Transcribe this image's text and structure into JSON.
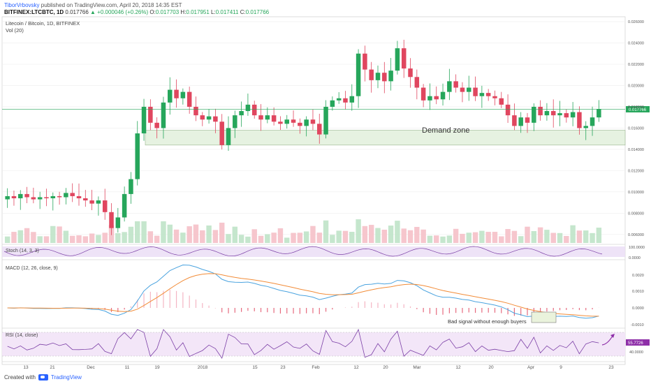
{
  "header": {
    "author": "TiborVrbovsky",
    "published": "published on TradingView.com, April 20, 2018 14:35 EST",
    "symbol": "BITFINEX:LTCBTC, 1D",
    "last": "0.017766",
    "change": "▲ +0.000046 (+0.26%)",
    "o_label": "O:",
    "o_value": "0.017703",
    "h_label": "H:",
    "h_value": "0.017951",
    "l_label": "L:",
    "l_value": "0.017411",
    "c_label": "C:",
    "c_value": "0.017766"
  },
  "footer": {
    "created": "Created with",
    "brand": "TradingView"
  },
  "colors": {
    "up": "#26a65b",
    "down": "#e0465f",
    "accent": "#2962ff",
    "zone": "#e6f2e1",
    "macd": "#4aa3df",
    "signal": "#f28c38",
    "rsi": "#7b3fa6",
    "stoch": "#7b3fa6"
  },
  "chart_data": {
    "type": "candlestick",
    "title": "Litecoin / Bitcoin, 1D, BITFINEX",
    "volume_label": "Vol (20)",
    "last_price_label": "0.017766",
    "zone_label": "Demand zone",
    "annotation": "Bad signal without enough buyers",
    "price_ticks": [
      "0.026000",
      "0.024000",
      "0.022000",
      "0.020000",
      "0.018000",
      "0.016000",
      "0.014000",
      "0.012000",
      "0.010000",
      "0.008000",
      "0.006000"
    ],
    "price_range": [
      0.0052,
      0.0262
    ],
    "demand_zone": [
      0.0144,
      0.0158
    ],
    "x_labels": [
      "13",
      "21",
      "Dec",
      "11",
      "19",
      "2018",
      "15",
      "23",
      "Feb",
      "12",
      "20",
      "Mar",
      "12",
      "20",
      "Apr",
      "9",
      "23"
    ],
    "last_price": 0.017766,
    "candles_key": [
      {
        "o": 0.0093,
        "c": 0.0096
      },
      {
        "o": 0.0096,
        "c": 0.0094
      },
      {
        "o": 0.0094,
        "c": 0.0098
      },
      {
        "o": 0.0098,
        "c": 0.0095
      },
      {
        "o": 0.0095,
        "c": 0.0093
      },
      {
        "o": 0.0093,
        "c": 0.0095
      },
      {
        "o": 0.0095,
        "c": 0.0094
      },
      {
        "o": 0.0094,
        "c": 0.0096
      },
      {
        "o": 0.0096,
        "c": 0.0095
      },
      {
        "o": 0.0095,
        "c": 0.0099
      },
      {
        "o": 0.0099,
        "c": 0.0096
      },
      {
        "o": 0.0096,
        "c": 0.0094
      },
      {
        "o": 0.0094,
        "c": 0.0092
      },
      {
        "o": 0.0092,
        "c": 0.0089
      },
      {
        "o": 0.0089,
        "c": 0.0092
      },
      {
        "o": 0.0092,
        "c": 0.0081
      },
      {
        "o": 0.0081,
        "c": 0.0066
      },
      {
        "o": 0.0066,
        "c": 0.0076
      },
      {
        "o": 0.0076,
        "c": 0.0098
      },
      {
        "o": 0.0098,
        "c": 0.0112
      },
      {
        "o": 0.0112,
        "c": 0.0155
      },
      {
        "o": 0.0155,
        "c": 0.018
      },
      {
        "o": 0.018,
        "c": 0.0165
      },
      {
        "o": 0.0165,
        "c": 0.016
      },
      {
        "o": 0.016,
        "c": 0.0184
      },
      {
        "o": 0.0184,
        "c": 0.0196
      },
      {
        "o": 0.0196,
        "c": 0.0188
      },
      {
        "o": 0.0188,
        "c": 0.0194
      },
      {
        "o": 0.0194,
        "c": 0.018
      },
      {
        "o": 0.018,
        "c": 0.0172
      },
      {
        "o": 0.0172,
        "c": 0.0168
      },
      {
        "o": 0.0168,
        "c": 0.0171
      },
      {
        "o": 0.0171,
        "c": 0.0166
      },
      {
        "o": 0.0166,
        "c": 0.0144
      },
      {
        "o": 0.0144,
        "c": 0.016
      },
      {
        "o": 0.016,
        "c": 0.0172
      },
      {
        "o": 0.0172,
        "c": 0.0176
      },
      {
        "o": 0.0176,
        "c": 0.0182
      },
      {
        "o": 0.0182,
        "c": 0.0172
      },
      {
        "o": 0.0172,
        "c": 0.0168
      },
      {
        "o": 0.0168,
        "c": 0.0172
      },
      {
        "o": 0.0172,
        "c": 0.0166
      },
      {
        "o": 0.0166,
        "c": 0.0164
      },
      {
        "o": 0.0164,
        "c": 0.0168
      },
      {
        "o": 0.0168,
        "c": 0.0165
      },
      {
        "o": 0.0165,
        "c": 0.0162
      },
      {
        "o": 0.0162,
        "c": 0.0168
      },
      {
        "o": 0.0168,
        "c": 0.0164
      },
      {
        "o": 0.0164,
        "c": 0.0154
      },
      {
        "o": 0.0154,
        "c": 0.018
      },
      {
        "o": 0.018,
        "c": 0.0186
      },
      {
        "o": 0.0186,
        "c": 0.0188
      },
      {
        "o": 0.0188,
        "c": 0.0184
      },
      {
        "o": 0.0184,
        "c": 0.019
      },
      {
        "o": 0.019,
        "c": 0.023
      },
      {
        "o": 0.023,
        "c": 0.0215
      },
      {
        "o": 0.0215,
        "c": 0.0205
      },
      {
        "o": 0.0205,
        "c": 0.0212
      },
      {
        "o": 0.0212,
        "c": 0.0204
      },
      {
        "o": 0.0204,
        "c": 0.0214
      },
      {
        "o": 0.0214,
        "c": 0.0235
      },
      {
        "o": 0.0235,
        "c": 0.0216
      },
      {
        "o": 0.0216,
        "c": 0.0208
      },
      {
        "o": 0.0208,
        "c": 0.0198
      },
      {
        "o": 0.0198,
        "c": 0.0186
      },
      {
        "o": 0.0186,
        "c": 0.019
      },
      {
        "o": 0.019,
        "c": 0.0187
      },
      {
        "o": 0.0187,
        "c": 0.0194
      },
      {
        "o": 0.0194,
        "c": 0.0204
      },
      {
        "o": 0.0204,
        "c": 0.0198
      },
      {
        "o": 0.0198,
        "c": 0.0194
      },
      {
        "o": 0.0194,
        "c": 0.0198
      },
      {
        "o": 0.0198,
        "c": 0.019
      },
      {
        "o": 0.019,
        "c": 0.0193
      },
      {
        "o": 0.0193,
        "c": 0.019
      },
      {
        "o": 0.019,
        "c": 0.0188
      },
      {
        "o": 0.0188,
        "c": 0.0182
      },
      {
        "o": 0.0182,
        "c": 0.0172
      },
      {
        "o": 0.0172,
        "c": 0.0162
      },
      {
        "o": 0.0162,
        "c": 0.017
      },
      {
        "o": 0.017,
        "c": 0.0165
      },
      {
        "o": 0.0165,
        "c": 0.018
      },
      {
        "o": 0.018,
        "c": 0.0172
      },
      {
        "o": 0.0172,
        "c": 0.0176
      },
      {
        "o": 0.0176,
        "c": 0.0172
      },
      {
        "o": 0.0172,
        "c": 0.0174
      },
      {
        "o": 0.0174,
        "c": 0.017
      },
      {
        "o": 0.017,
        "c": 0.0175
      },
      {
        "o": 0.0175,
        "c": 0.016
      },
      {
        "o": 0.016,
        "c": 0.0162
      },
      {
        "o": 0.0162,
        "c": 0.017
      },
      {
        "o": 0.017,
        "c": 0.0178
      }
    ],
    "stoch": {
      "label": "Stoch (14, 3, 3)",
      "ticks": [
        "100.0000",
        "0.0000"
      ]
    },
    "macd": {
      "label": "MACD (12, 26, close, 9)",
      "ticks": [
        "0.0020",
        "0.0010",
        "0.0000",
        "-0.0010"
      ]
    },
    "rsi": {
      "label": "RSI (14, close)",
      "value_label": "55.7726",
      "ticks": [
        "40.0000"
      ],
      "value": 55.7726
    }
  }
}
